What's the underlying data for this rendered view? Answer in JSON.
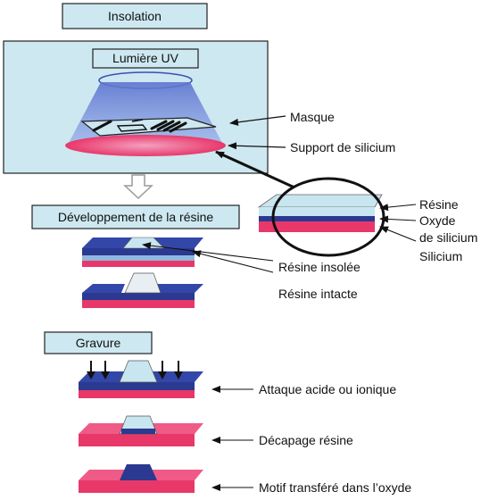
{
  "steps": {
    "insolation": "Insolation",
    "uv": "Lumière UV",
    "developpement": "Développement de la résine",
    "gravure": "Gravure"
  },
  "labels": {
    "masque": "Masque",
    "support": "Support de silicium",
    "resine": "Résine",
    "oxyde_1": "Oxyde",
    "oxyde_2": "de silicium",
    "silicium": "Silicium",
    "resine_insolee": "Résine insolée",
    "resine_intacte": "Résine intacte",
    "attaque": "Attaque acide ou ionique",
    "decapage": "Décapage résine",
    "motif": "Motif transféré dans l’oxyde"
  },
  "colors": {
    "panel_bg": "#cde8f0",
    "header_bg": "#cde8f0",
    "resist": "#2b3990",
    "resist_exposed": "#c8e6f0",
    "oxide": "#8fb8e0",
    "silicon": "#e8386a",
    "uv_cone": "#6f86d6",
    "arrow_gray": "#b0b0b0"
  }
}
